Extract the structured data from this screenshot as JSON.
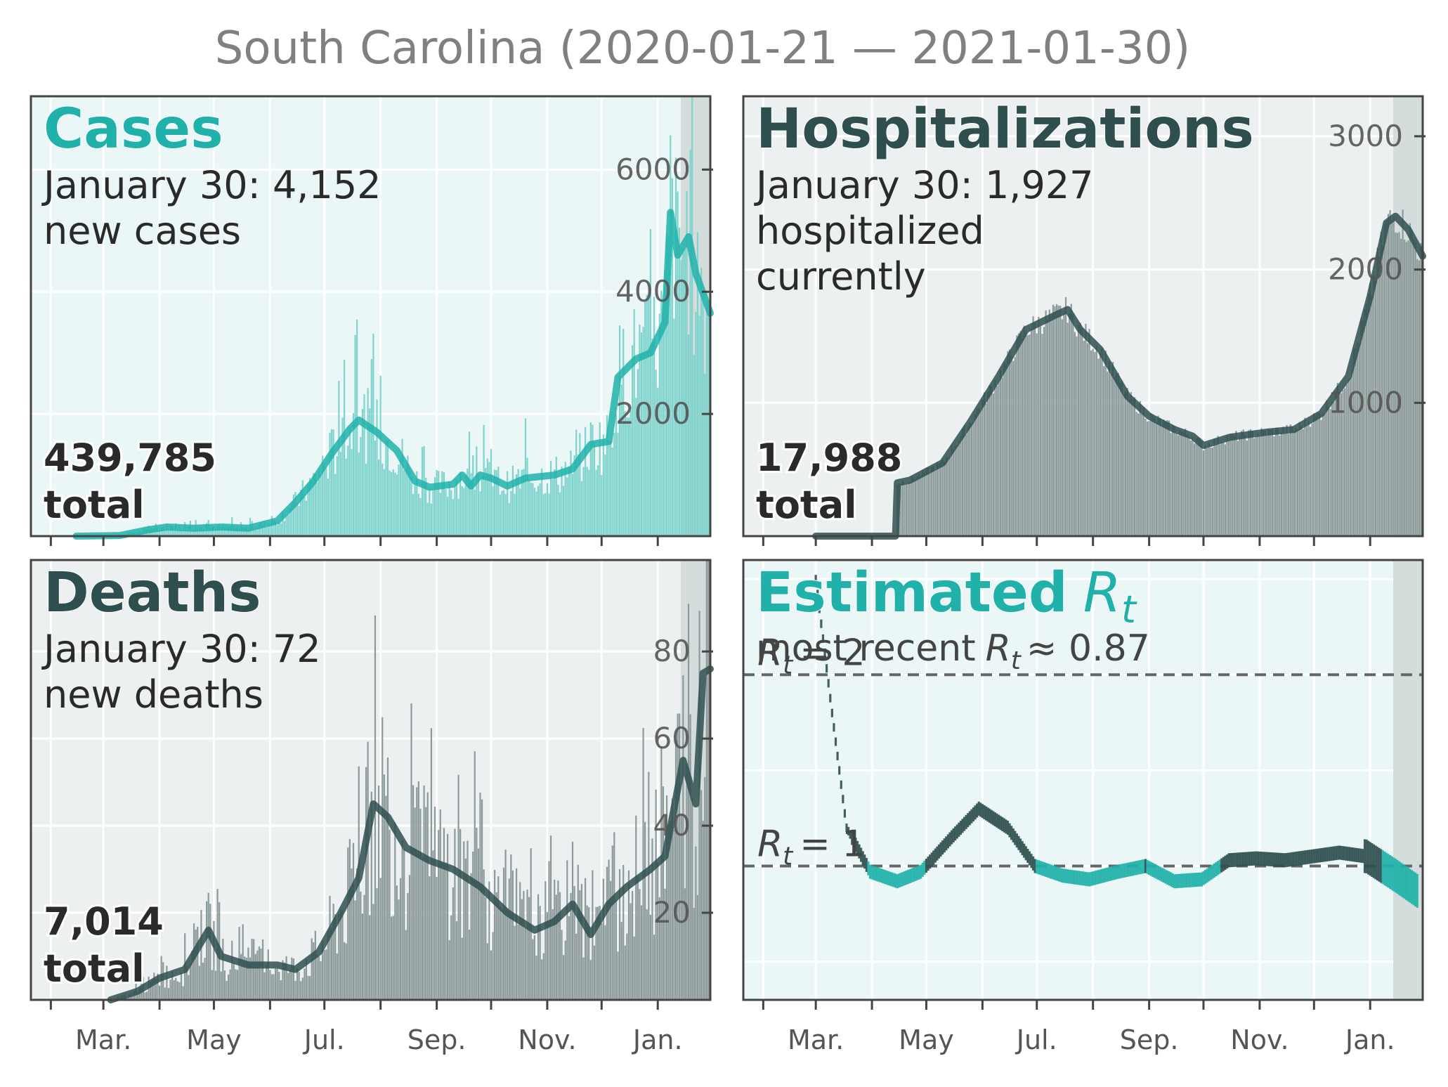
{
  "title": "South Carolina (2020-01-21 — 2021-01-30)",
  "colors": {
    "teal": "#20b2aa",
    "teal_bar": "#7fd3cd",
    "dark": "#2f4f4f",
    "dark_bar": "#8c9a9a",
    "panel_bg_light": "#ebf7f7",
    "panel_bg_gray": "#edf0f0",
    "shade": "#d5dcdc",
    "frame": "#444444",
    "tick_text": "#555555",
    "body_text": "#2a2a2a"
  },
  "month_labels": [
    "Mar.",
    "May",
    "Jul.",
    "Sep.",
    "Nov.",
    "Jan."
  ],
  "panels": {
    "cases": {
      "heading": "Cases",
      "line1": "January 30: 4,152",
      "line2": "new cases",
      "total_value": "439,785",
      "total_label": "total",
      "ytick_labels": [
        "2000",
        "4000",
        "6000"
      ]
    },
    "hosp": {
      "heading": "Hospitalizations",
      "line1": "January 30: 1,927",
      "line2": "hospitalized",
      "line3": "currently",
      "total_value": "17,988",
      "total_label": "total",
      "ytick_labels": [
        "1000",
        "2000",
        "3000"
      ]
    },
    "deaths": {
      "heading": "Deaths",
      "line1": "January 30: 72",
      "line2": "new deaths",
      "total_value": "7,014",
      "total_label": "total",
      "ytick_labels": [
        "20",
        "40",
        "60",
        "80"
      ]
    },
    "rt": {
      "heading_word": "Estimated",
      "heading_sym": "R",
      "heading_sub": "t",
      "recent_prefix": "most recent",
      "recent_sym": "R",
      "recent_sub": "t",
      "recent_value": "≈ 0.87",
      "ref2_sym": "R",
      "ref2_sub": "t",
      "ref2_text": "= 2",
      "ref1_sym": "R",
      "ref1_sub": "t",
      "ref1_text": "= 1"
    }
  },
  "chart_data": [
    {
      "type": "bar",
      "title": "Cases",
      "x_range": [
        "2020-01-21",
        "2021-01-30"
      ],
      "ylim": [
        0,
        7200
      ],
      "yticks": [
        2000,
        4000,
        6000
      ],
      "smoothed_line": [
        [
          "2020-02-15",
          0
        ],
        [
          "2020-03-10",
          10
        ],
        [
          "2020-03-25",
          100
        ],
        [
          "2020-04-05",
          150
        ],
        [
          "2020-04-20",
          130
        ],
        [
          "2020-05-05",
          150
        ],
        [
          "2020-05-20",
          130
        ],
        [
          "2020-06-05",
          250
        ],
        [
          "2020-06-15",
          550
        ],
        [
          "2020-06-25",
          900
        ],
        [
          "2020-07-05",
          1350
        ],
        [
          "2020-07-15",
          1750
        ],
        [
          "2020-07-20",
          1900
        ],
        [
          "2020-07-30",
          1700
        ],
        [
          "2020-08-10",
          1400
        ],
        [
          "2020-08-20",
          900
        ],
        [
          "2020-08-28",
          800
        ],
        [
          "2020-09-10",
          850
        ],
        [
          "2020-09-15",
          1000
        ],
        [
          "2020-09-20",
          820
        ],
        [
          "2020-09-25",
          1000
        ],
        [
          "2020-10-01",
          950
        ],
        [
          "2020-10-10",
          820
        ],
        [
          "2020-10-20",
          950
        ],
        [
          "2020-11-05",
          1000
        ],
        [
          "2020-11-15",
          1100
        ],
        [
          "2020-11-25",
          1500
        ],
        [
          "2020-12-05",
          1550
        ],
        [
          "2020-12-10",
          2600
        ],
        [
          "2020-12-20",
          2900
        ],
        [
          "2020-12-28",
          3000
        ],
        [
          "2021-01-05",
          3500
        ],
        [
          "2021-01-08",
          5300
        ],
        [
          "2021-01-12",
          4600
        ],
        [
          "2021-01-18",
          4900
        ],
        [
          "2021-01-22",
          4300
        ],
        [
          "2021-01-30",
          3650
        ]
      ]
    },
    {
      "type": "bar",
      "title": "Hospitalizations",
      "x_range": [
        "2020-01-21",
        "2021-01-30"
      ],
      "ylim": [
        0,
        3300
      ],
      "yticks": [
        1000,
        2000,
        3000
      ],
      "smoothed_line": [
        [
          "2020-03-01",
          0
        ],
        [
          "2020-04-14",
          0
        ],
        [
          "2020-04-15",
          400
        ],
        [
          "2020-04-22",
          420
        ],
        [
          "2020-05-10",
          550
        ],
        [
          "2020-05-25",
          850
        ],
        [
          "2020-06-10",
          1200
        ],
        [
          "2020-06-25",
          1550
        ],
        [
          "2020-07-10",
          1650
        ],
        [
          "2020-07-18",
          1700
        ],
        [
          "2020-07-25",
          1550
        ],
        [
          "2020-08-05",
          1400
        ],
        [
          "2020-08-20",
          1050
        ],
        [
          "2020-09-01",
          900
        ],
        [
          "2020-09-15",
          800
        ],
        [
          "2020-09-25",
          750
        ],
        [
          "2020-10-01",
          680
        ],
        [
          "2020-10-15",
          740
        ],
        [
          "2020-10-25",
          760
        ],
        [
          "2020-11-05",
          780
        ],
        [
          "2020-11-20",
          800
        ],
        [
          "2020-12-05",
          920
        ],
        [
          "2020-12-20",
          1200
        ],
        [
          "2021-01-01",
          1800
        ],
        [
          "2021-01-10",
          2350
        ],
        [
          "2021-01-15",
          2400
        ],
        [
          "2021-01-22",
          2300
        ],
        [
          "2021-01-30",
          2100
        ]
      ]
    },
    {
      "type": "bar",
      "title": "Deaths",
      "x_range": [
        "2020-01-21",
        "2021-01-30"
      ],
      "ylim": [
        0,
        101
      ],
      "yticks": [
        20,
        40,
        60,
        80
      ],
      "smoothed_line": [
        [
          "2020-03-05",
          0
        ],
        [
          "2020-03-20",
          2
        ],
        [
          "2020-04-01",
          5
        ],
        [
          "2020-04-15",
          7
        ],
        [
          "2020-04-28",
          16
        ],
        [
          "2020-05-05",
          10
        ],
        [
          "2020-05-20",
          8
        ],
        [
          "2020-06-05",
          8
        ],
        [
          "2020-06-15",
          7
        ],
        [
          "2020-06-28",
          11
        ],
        [
          "2020-07-10",
          20
        ],
        [
          "2020-07-20",
          28
        ],
        [
          "2020-07-28",
          45
        ],
        [
          "2020-08-05",
          42
        ],
        [
          "2020-08-15",
          35
        ],
        [
          "2020-08-28",
          32
        ],
        [
          "2020-09-10",
          30
        ],
        [
          "2020-09-25",
          26
        ],
        [
          "2020-10-10",
          20
        ],
        [
          "2020-10-25",
          16
        ],
        [
          "2020-11-05",
          18
        ],
        [
          "2020-11-15",
          22
        ],
        [
          "2020-11-25",
          15
        ],
        [
          "2020-12-05",
          22
        ],
        [
          "2020-12-15",
          26
        ],
        [
          "2020-12-28",
          30
        ],
        [
          "2021-01-05",
          33
        ],
        [
          "2021-01-15",
          55
        ],
        [
          "2021-01-22",
          45
        ],
        [
          "2021-01-26",
          75
        ],
        [
          "2021-01-30",
          76
        ]
      ]
    },
    {
      "type": "line",
      "title": "Estimated Rt",
      "x_range": [
        "2020-01-21",
        "2021-01-30"
      ],
      "ylim": [
        0.3,
        2.6
      ],
      "reference_lines": [
        1,
        2
      ],
      "series": [
        {
          "x": [
            "2020-03-01",
            "2020-03-10",
            "2020-03-18",
            "2020-03-31",
            "2020-04-15",
            "2020-04-28",
            "2020-05-15",
            "2020-05-30",
            "2020-06-15",
            "2020-06-30",
            "2020-07-15",
            "2020-07-30",
            "2020-08-15",
            "2020-08-30",
            "2020-09-15",
            "2020-09-30",
            "2020-10-15",
            "2020-10-30",
            "2020-11-15",
            "2020-11-30",
            "2020-12-15",
            "2020-12-30",
            "2021-01-15",
            "2021-01-27"
          ],
          "y": [
            2.5,
            1.8,
            1.2,
            0.97,
            0.92,
            0.97,
            1.15,
            1.3,
            1.2,
            1.0,
            0.95,
            0.93,
            0.97,
            1.0,
            0.92,
            0.93,
            1.03,
            1.04,
            1.03,
            1.05,
            1.07,
            1.05,
            0.95,
            0.87
          ]
        }
      ]
    }
  ]
}
